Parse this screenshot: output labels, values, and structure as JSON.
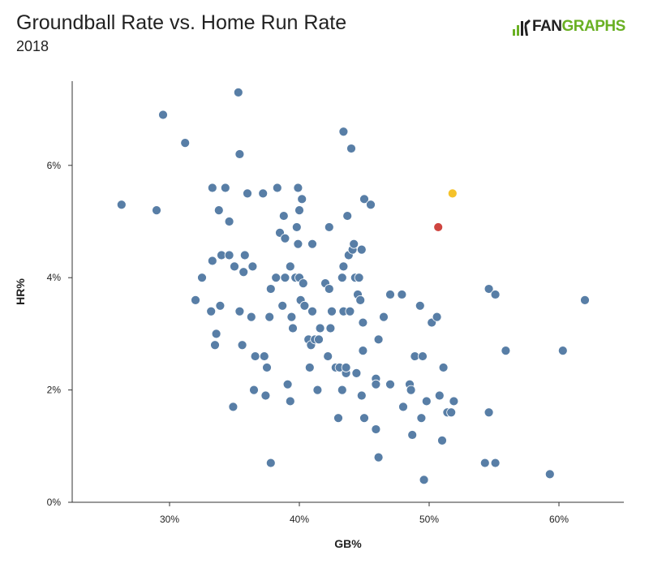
{
  "header": {
    "title": "Groundball Rate vs. Home Run Rate",
    "subtitle": "2018",
    "logo_text_a": "FAN",
    "logo_text_b": "GRAPHS"
  },
  "colors": {
    "point": "#587ea6",
    "highlight_red": "#cf4540",
    "highlight_yellow": "#f5c22a",
    "axis": "#333333",
    "logo_green": "#6ab023"
  },
  "chart_data": {
    "type": "scatter",
    "title": "Groundball Rate vs. Home Run Rate",
    "subtitle": "2018",
    "xlabel": "GB%",
    "ylabel": "HR%",
    "xlim": [
      22.5,
      65
    ],
    "ylim": [
      0,
      7.5
    ],
    "xticks": [
      30,
      40,
      50,
      60
    ],
    "xtick_labels": [
      "30%",
      "40%",
      "50%",
      "60%"
    ],
    "yticks": [
      0,
      2,
      4,
      6
    ],
    "ytick_labels": [
      "0%",
      "2%",
      "4%",
      "6%"
    ],
    "grid": false,
    "series": [
      {
        "color": "#587ea6",
        "points": [
          [
            26.3,
            5.3
          ],
          [
            29.0,
            5.2
          ],
          [
            29.5,
            6.9
          ],
          [
            31.2,
            6.4
          ],
          [
            32.0,
            3.6
          ],
          [
            32.5,
            4.0
          ],
          [
            33.2,
            3.4
          ],
          [
            33.3,
            4.3
          ],
          [
            33.3,
            5.6
          ],
          [
            33.5,
            2.8
          ],
          [
            33.6,
            3.0
          ],
          [
            33.8,
            5.2
          ],
          [
            33.9,
            3.5
          ],
          [
            34.0,
            4.4
          ],
          [
            34.3,
            5.6
          ],
          [
            34.6,
            5.0
          ],
          [
            34.6,
            4.4
          ],
          [
            34.9,
            1.7
          ],
          [
            35.0,
            4.2
          ],
          [
            35.3,
            7.3
          ],
          [
            35.4,
            3.4
          ],
          [
            35.4,
            6.2
          ],
          [
            35.6,
            2.8
          ],
          [
            35.7,
            4.1
          ],
          [
            35.8,
            4.4
          ],
          [
            36.0,
            5.5
          ],
          [
            36.3,
            3.3
          ],
          [
            36.4,
            4.2
          ],
          [
            36.5,
            2.0
          ],
          [
            36.6,
            2.6
          ],
          [
            37.2,
            5.5
          ],
          [
            37.3,
            2.6
          ],
          [
            37.4,
            1.9
          ],
          [
            37.5,
            2.4
          ],
          [
            37.7,
            3.3
          ],
          [
            37.8,
            0.7
          ],
          [
            37.8,
            3.8
          ],
          [
            38.2,
            4.0
          ],
          [
            38.3,
            5.6
          ],
          [
            38.5,
            4.8
          ],
          [
            38.7,
            3.5
          ],
          [
            38.8,
            5.1
          ],
          [
            38.9,
            4.7
          ],
          [
            38.9,
            4.0
          ],
          [
            39.1,
            2.1
          ],
          [
            39.3,
            1.8
          ],
          [
            39.3,
            4.2
          ],
          [
            39.4,
            3.3
          ],
          [
            39.5,
            3.1
          ],
          [
            39.7,
            4.0
          ],
          [
            39.8,
            4.9
          ],
          [
            39.9,
            5.6
          ],
          [
            39.9,
            4.6
          ],
          [
            40.0,
            5.2
          ],
          [
            40.0,
            4.0
          ],
          [
            40.1,
            3.6
          ],
          [
            40.2,
            5.4
          ],
          [
            40.3,
            3.9
          ],
          [
            40.4,
            3.5
          ],
          [
            40.7,
            2.9
          ],
          [
            40.8,
            2.4
          ],
          [
            40.9,
            2.8
          ],
          [
            41.0,
            4.6
          ],
          [
            41.0,
            3.4
          ],
          [
            41.2,
            2.9
          ],
          [
            41.4,
            2.0
          ],
          [
            41.5,
            2.9
          ],
          [
            41.6,
            3.1
          ],
          [
            42.0,
            3.9
          ],
          [
            42.2,
            2.6
          ],
          [
            42.3,
            4.9
          ],
          [
            42.3,
            3.8
          ],
          [
            42.4,
            3.1
          ],
          [
            42.5,
            3.4
          ],
          [
            42.8,
            2.4
          ],
          [
            43.0,
            1.5
          ],
          [
            43.1,
            2.4
          ],
          [
            43.3,
            2.0
          ],
          [
            43.3,
            4.0
          ],
          [
            43.4,
            3.4
          ],
          [
            43.4,
            4.2
          ],
          [
            43.4,
            6.6
          ],
          [
            43.6,
            2.3
          ],
          [
            43.6,
            2.4
          ],
          [
            43.7,
            5.1
          ],
          [
            43.8,
            4.4
          ],
          [
            43.9,
            3.4
          ],
          [
            44.0,
            6.3
          ],
          [
            44.1,
            4.5
          ],
          [
            44.2,
            4.6
          ],
          [
            44.3,
            4.0
          ],
          [
            44.4,
            2.3
          ],
          [
            44.5,
            3.7
          ],
          [
            44.6,
            4.0
          ],
          [
            44.7,
            3.6
          ],
          [
            44.8,
            1.9
          ],
          [
            44.8,
            4.5
          ],
          [
            44.9,
            2.7
          ],
          [
            44.9,
            3.2
          ],
          [
            45.0,
            5.4
          ],
          [
            45.0,
            1.5
          ],
          [
            45.5,
            5.3
          ],
          [
            45.9,
            1.3
          ],
          [
            45.9,
            2.2
          ],
          [
            45.9,
            2.1
          ],
          [
            46.1,
            0.8
          ],
          [
            46.1,
            2.9
          ],
          [
            46.5,
            3.3
          ],
          [
            47.0,
            3.7
          ],
          [
            47.0,
            2.1
          ],
          [
            47.9,
            3.7
          ],
          [
            48.0,
            1.7
          ],
          [
            48.5,
            2.1
          ],
          [
            48.6,
            2.0
          ],
          [
            48.7,
            1.2
          ],
          [
            48.9,
            2.6
          ],
          [
            49.3,
            3.5
          ],
          [
            49.4,
            1.5
          ],
          [
            49.5,
            2.6
          ],
          [
            49.6,
            0.4
          ],
          [
            49.8,
            1.8
          ],
          [
            50.2,
            3.2
          ],
          [
            50.6,
            3.3
          ],
          [
            50.8,
            1.9
          ],
          [
            51.0,
            1.1
          ],
          [
            51.1,
            2.4
          ],
          [
            51.4,
            1.6
          ],
          [
            51.7,
            1.6
          ],
          [
            51.9,
            1.8
          ],
          [
            54.3,
            0.7
          ],
          [
            54.6,
            3.8
          ],
          [
            54.6,
            1.6
          ],
          [
            55.1,
            0.7
          ],
          [
            55.1,
            3.7
          ],
          [
            55.9,
            2.7
          ],
          [
            59.3,
            0.5
          ],
          [
            60.3,
            2.7
          ],
          [
            62.0,
            3.6
          ]
        ]
      },
      {
        "color": "#cf4540",
        "points": [
          [
            50.7,
            4.9
          ]
        ]
      },
      {
        "color": "#f5c22a",
        "points": [
          [
            51.8,
            5.5
          ]
        ]
      }
    ]
  }
}
